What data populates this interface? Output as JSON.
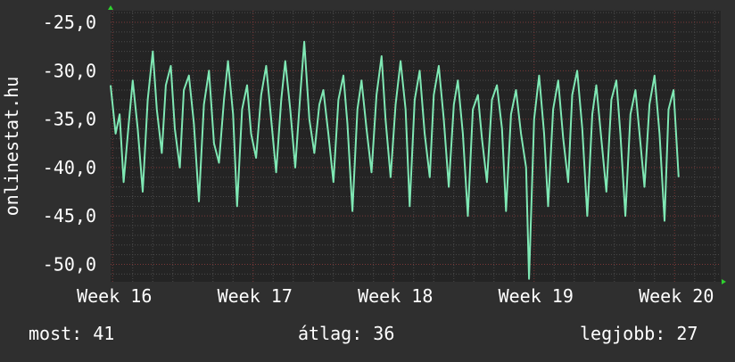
{
  "colors": {
    "background": "#2f2f2f",
    "plot_background": "#242424",
    "grid_major": "#7a3838",
    "grid_minor": "#4a4a4a",
    "series": "#7fe8b4",
    "axis_arrow": "#2fd12f",
    "text": "#ffffff"
  },
  "stats": {
    "most_label": "most:",
    "most_value": "41",
    "atlag_label": "átlag:",
    "atlag_value": "36",
    "legjobb_label": "legjobb:",
    "legjobb_value": "27"
  },
  "chart_data": {
    "type": "line",
    "ylabel": "onlinestat.hu",
    "y_tick_labels": [
      "-25,0",
      "-30,0",
      "-35,0",
      "-40,0",
      "-45,0",
      "-50,0"
    ],
    "y_tick_values": [
      -25,
      -30,
      -35,
      -40,
      -45,
      -50
    ],
    "ylim": [
      -51.8,
      -23.8
    ],
    "x_tick_labels": [
      "Week 16",
      "Week 17",
      "Week 18",
      "Week 19",
      "Week 20"
    ],
    "x_tick_values": [
      0,
      7,
      14,
      21,
      28
    ],
    "xlim": [
      -0.1,
      30.3
    ],
    "grid": true,
    "series": [
      {
        "x": [
          -0.1,
          0.15,
          0.35,
          0.55,
          0.8,
          1.0,
          1.25,
          1.5,
          1.75,
          2.0,
          2.2,
          2.45,
          2.65,
          2.9,
          3.1,
          3.35,
          3.55,
          3.8,
          4.05,
          4.3,
          4.55,
          4.8,
          5.05,
          5.3,
          5.55,
          5.75,
          6.0,
          6.2,
          6.45,
          6.7,
          6.9,
          7.15,
          7.4,
          7.65,
          7.9,
          8.15,
          8.4,
          8.6,
          8.85,
          9.1,
          9.35,
          9.55,
          9.8,
          10.05,
          10.3,
          10.5,
          10.75,
          11.0,
          11.25,
          11.5,
          11.7,
          11.95,
          12.2,
          12.4,
          12.65,
          12.9,
          13.15,
          13.4,
          13.6,
          13.85,
          14.1,
          14.35,
          14.6,
          14.8,
          15.05,
          15.3,
          15.55,
          15.8,
          16.0,
          16.25,
          16.5,
          16.75,
          17.0,
          17.2,
          17.45,
          17.7,
          17.95,
          18.2,
          18.4,
          18.65,
          18.9,
          19.15,
          19.4,
          19.6,
          19.85,
          20.1,
          20.35,
          20.6,
          20.75,
          21.0,
          21.25,
          21.5,
          21.7,
          21.95,
          22.2,
          22.45,
          22.7,
          22.9,
          23.15,
          23.4,
          23.65,
          23.9,
          24.1,
          24.35,
          24.6,
          24.85,
          25.1,
          25.3,
          25.55,
          25.8,
          26.05,
          26.3,
          26.5,
          26.75,
          27.0,
          27.25,
          27.5,
          27.7,
          27.95,
          28.2
        ],
        "values": [
          -31.5,
          -36.5,
          -34.5,
          -41.5,
          -35.5,
          -31.0,
          -36.0,
          -42.5,
          -33.0,
          -28.0,
          -34.0,
          -38.5,
          -31.5,
          -29.5,
          -36.0,
          -40.0,
          -32.0,
          -30.5,
          -35.5,
          -43.5,
          -33.5,
          -30.0,
          -37.5,
          -39.5,
          -33.0,
          -29.0,
          -34.5,
          -44.0,
          -34.0,
          -31.5,
          -36.5,
          -39.0,
          -32.5,
          -29.5,
          -35.0,
          -40.5,
          -33.0,
          -29.0,
          -34.0,
          -40.0,
          -32.5,
          -27.0,
          -35.0,
          -38.5,
          -33.5,
          -32.0,
          -36.5,
          -41.5,
          -33.0,
          -30.5,
          -35.5,
          -44.5,
          -34.0,
          -31.0,
          -36.0,
          -40.5,
          -32.5,
          -28.5,
          -35.0,
          -41.0,
          -33.5,
          -29.0,
          -34.0,
          -44.0,
          -33.0,
          -30.0,
          -36.5,
          -41.0,
          -32.5,
          -29.5,
          -35.0,
          -42.0,
          -33.5,
          -31.0,
          -36.5,
          -45.0,
          -34.0,
          -32.5,
          -37.0,
          -41.5,
          -33.0,
          -31.5,
          -36.0,
          -44.5,
          -34.5,
          -32.0,
          -36.5,
          -40.0,
          -51.5,
          -35.0,
          -30.5,
          -36.5,
          -44.0,
          -34.0,
          -31.0,
          -37.0,
          -41.5,
          -32.5,
          -30.0,
          -36.0,
          -45.0,
          -34.5,
          -31.5,
          -37.0,
          -42.5,
          -33.0,
          -31.0,
          -36.5,
          -45.0,
          -34.5,
          -32.0,
          -37.5,
          -42.0,
          -33.5,
          -30.5,
          -36.5,
          -45.5,
          -34.0,
          -32.0,
          -41.0
        ]
      }
    ]
  }
}
